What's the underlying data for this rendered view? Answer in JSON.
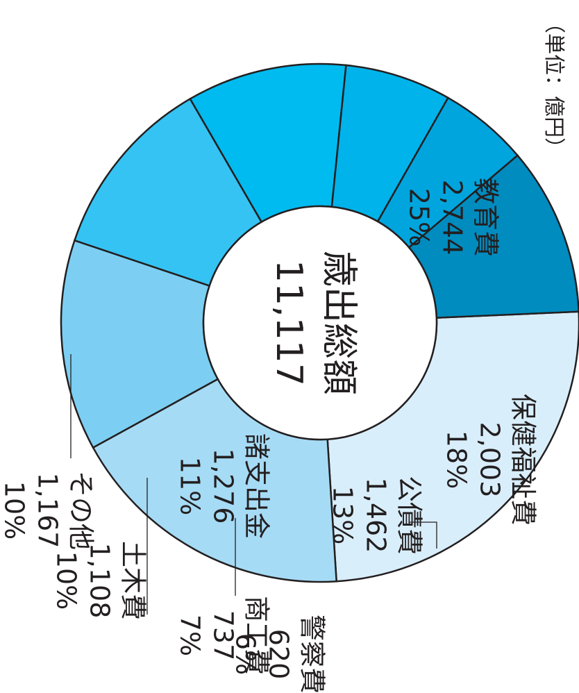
{
  "chart_data": {
    "type": "pie",
    "donut": true,
    "unit_note": "（単位：億円）",
    "center": {
      "title": "歳出総額",
      "total": "11,117"
    },
    "slices": [
      {
        "name": "教育費",
        "value": 2744,
        "value_label": "2,744",
        "percent": "25%",
        "color": "#d9eefb"
      },
      {
        "name": "保健福祉費",
        "value": 2003,
        "value_label": "2,003",
        "percent": "18%",
        "color": "#a6dbf5"
      },
      {
        "name": "公債費",
        "value": 1462,
        "value_label": "1,462",
        "percent": "13%",
        "color": "#7ccff2"
      },
      {
        "name": "諸支出金",
        "value": 1276,
        "value_label": "1,276",
        "percent": "11%",
        "color": "#35c3f3"
      },
      {
        "name": "土木費",
        "value": 1108,
        "value_label": "1,108",
        "percent": "10%",
        "color": "#00bbef"
      },
      {
        "name": "商工費",
        "value": 737,
        "value_label": "737",
        "percent": "7%",
        "color": "#00b3ea"
      },
      {
        "name": "警察費",
        "value": 620,
        "value_label": "620",
        "percent": "6%",
        "color": "#00a5de"
      },
      {
        "name": "その他",
        "value": 1167,
        "value_label": "1,167",
        "percent": "10%",
        "color": "#008cbf"
      }
    ]
  }
}
